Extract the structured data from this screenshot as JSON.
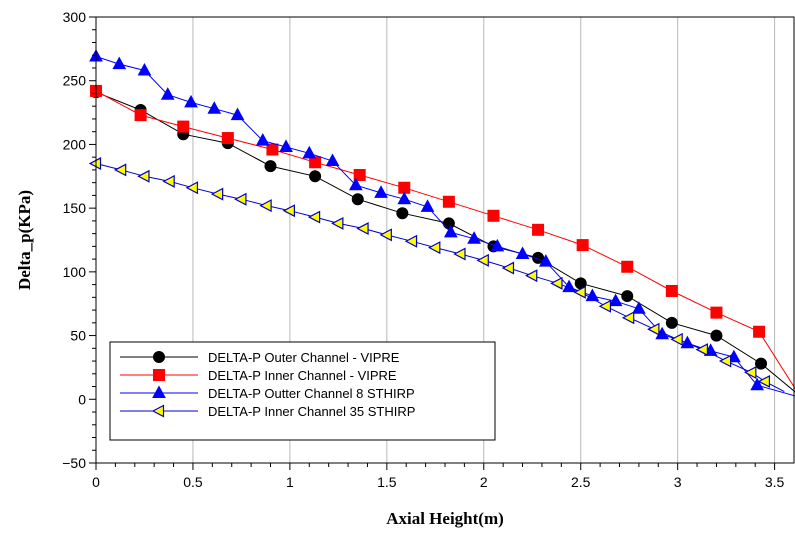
{
  "chart_data": {
    "type": "line",
    "xlabel": "Axial Height(m)",
    "ylabel": "Delta_p(KPa)",
    "xlim": [
      0,
      3.6
    ],
    "ylim": [
      -50,
      300
    ],
    "x_ticks": [
      "0",
      "0.5",
      "1",
      "1.5",
      "2",
      "2.5",
      "3",
      "3.5"
    ],
    "y_ticks": [
      "−50",
      "0",
      "50",
      "100",
      "150",
      "200",
      "250",
      "300"
    ],
    "grid": "vertical",
    "legend_position": "bottom-left",
    "series": [
      {
        "name": "DELTA-P Outer Channel  - VIPRE",
        "color": "#000000",
        "marker": "circle",
        "points": [
          [
            0,
            241
          ],
          [
            0.23,
            227
          ],
          [
            0.45,
            208
          ],
          [
            0.68,
            201
          ],
          [
            0.9,
            183
          ],
          [
            1.13,
            175
          ],
          [
            1.35,
            157
          ],
          [
            1.58,
            146
          ],
          [
            1.82,
            138
          ],
          [
            2.05,
            120
          ],
          [
            2.28,
            111
          ],
          [
            2.5,
            91
          ],
          [
            2.74,
            81
          ],
          [
            2.97,
            60
          ],
          [
            3.2,
            50
          ],
          [
            3.43,
            28
          ],
          [
            3.62,
            4
          ]
        ]
      },
      {
        "name": "DELTA-P Inner Channel - VIPRE",
        "color": "#ff0000",
        "marker": "square",
        "points": [
          [
            0,
            242
          ],
          [
            0.23,
            223
          ],
          [
            0.45,
            214
          ],
          [
            0.68,
            205
          ],
          [
            0.91,
            196
          ],
          [
            1.13,
            186
          ],
          [
            1.36,
            176
          ],
          [
            1.59,
            166
          ],
          [
            1.82,
            155
          ],
          [
            2.05,
            144
          ],
          [
            2.28,
            133
          ],
          [
            2.51,
            121
          ],
          [
            2.74,
            104
          ],
          [
            2.97,
            85
          ],
          [
            3.2,
            68
          ],
          [
            3.42,
            53
          ],
          [
            3.62,
            5
          ]
        ]
      },
      {
        "name": "DELTA-P Outter Channel 8 STHIRP",
        "color": "#0000ff",
        "marker": "triangle-up",
        "points": [
          [
            0,
            269
          ],
          [
            0.12,
            263
          ],
          [
            0.25,
            258
          ],
          [
            0.37,
            239
          ],
          [
            0.49,
            233
          ],
          [
            0.61,
            228
          ],
          [
            0.73,
            223
          ],
          [
            0.86,
            203
          ],
          [
            0.98,
            198
          ],
          [
            1.1,
            193
          ],
          [
            1.22,
            187
          ],
          [
            1.34,
            168
          ],
          [
            1.47,
            162
          ],
          [
            1.59,
            157
          ],
          [
            1.71,
            151
          ],
          [
            1.83,
            131
          ],
          [
            1.95,
            126
          ],
          [
            2.07,
            120
          ],
          [
            2.2,
            114
          ],
          [
            2.32,
            108
          ],
          [
            2.44,
            88
          ],
          [
            2.56,
            81
          ],
          [
            2.68,
            77
          ],
          [
            2.8,
            71
          ],
          [
            2.92,
            51
          ],
          [
            3.05,
            44
          ],
          [
            3.17,
            38
          ],
          [
            3.29,
            33
          ],
          [
            3.41,
            11
          ],
          [
            3.62,
            2
          ]
        ]
      },
      {
        "name": "DELTA-P Inner Channel 35 STHIRP",
        "color": "#0000cc",
        "fill": "#ffff00",
        "marker": "triangle-left",
        "points": [
          [
            0,
            185
          ],
          [
            0.13,
            180
          ],
          [
            0.25,
            175
          ],
          [
            0.38,
            171
          ],
          [
            0.5,
            166
          ],
          [
            0.63,
            161
          ],
          [
            0.75,
            157
          ],
          [
            0.88,
            152
          ],
          [
            1.0,
            148
          ],
          [
            1.13,
            143
          ],
          [
            1.25,
            138
          ],
          [
            1.38,
            134
          ],
          [
            1.5,
            129
          ],
          [
            1.63,
            124
          ],
          [
            1.75,
            119
          ],
          [
            1.88,
            114
          ],
          [
            2.0,
            109
          ],
          [
            2.13,
            103
          ],
          [
            2.25,
            97
          ],
          [
            2.38,
            91
          ],
          [
            2.5,
            84
          ],
          [
            2.63,
            73
          ],
          [
            2.75,
            64
          ],
          [
            2.88,
            55
          ],
          [
            3.0,
            47
          ],
          [
            3.13,
            39
          ],
          [
            3.25,
            30
          ],
          [
            3.38,
            21
          ],
          [
            3.45,
            14
          ],
          [
            3.55,
            6
          ]
        ]
      }
    ]
  }
}
